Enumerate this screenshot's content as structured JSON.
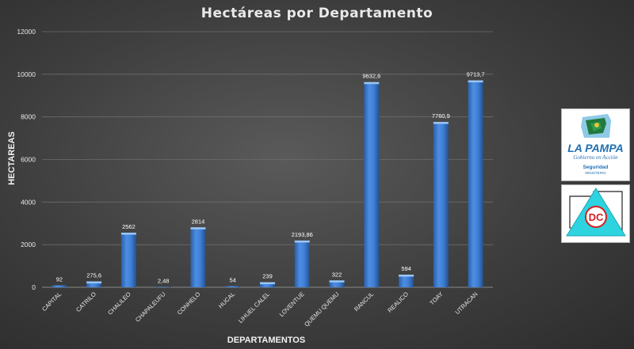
{
  "chart_data": {
    "type": "bar",
    "title": "Hectáreas por Departamento",
    "xlabel": "DEPARTAMENTOS",
    "ylabel": "HECTAREAS",
    "ylim": [
      0,
      12000
    ],
    "yticks": [
      "0",
      "2000",
      "4000",
      "6000",
      "8000",
      "10000",
      "12000"
    ],
    "grid": true,
    "categories": [
      "CAPITAL",
      "CATRILO",
      "CHALILEO",
      "CHAPALEUFU",
      "CONHELO",
      "HUCAL",
      "LIHUEL CALEL",
      "LOVENTUE",
      "QUEMU QUEMU",
      "RANCUL",
      "REALICO",
      "TOAY",
      "UTRACAN"
    ],
    "values": [
      92,
      275.6,
      2562,
      2.48,
      2814,
      54,
      239,
      2193.86,
      322,
      9632.6,
      594,
      7760.9,
      9713.7
    ],
    "data_labels": [
      "92",
      "275,6",
      "2562",
      "2,48",
      "2814",
      "54",
      "239",
      "2193,86",
      "322",
      "9632,6",
      "594",
      "7760,9",
      "9713,7"
    ],
    "bar_color": "#3f7fd6"
  },
  "logos": {
    "la_pampa": {
      "name": "LA PAMPA",
      "subtitle": "Gobierno en Acción",
      "department": "Seguridad",
      "ministry": "MINISTERIO"
    },
    "dc": {
      "text": "DC"
    }
  }
}
